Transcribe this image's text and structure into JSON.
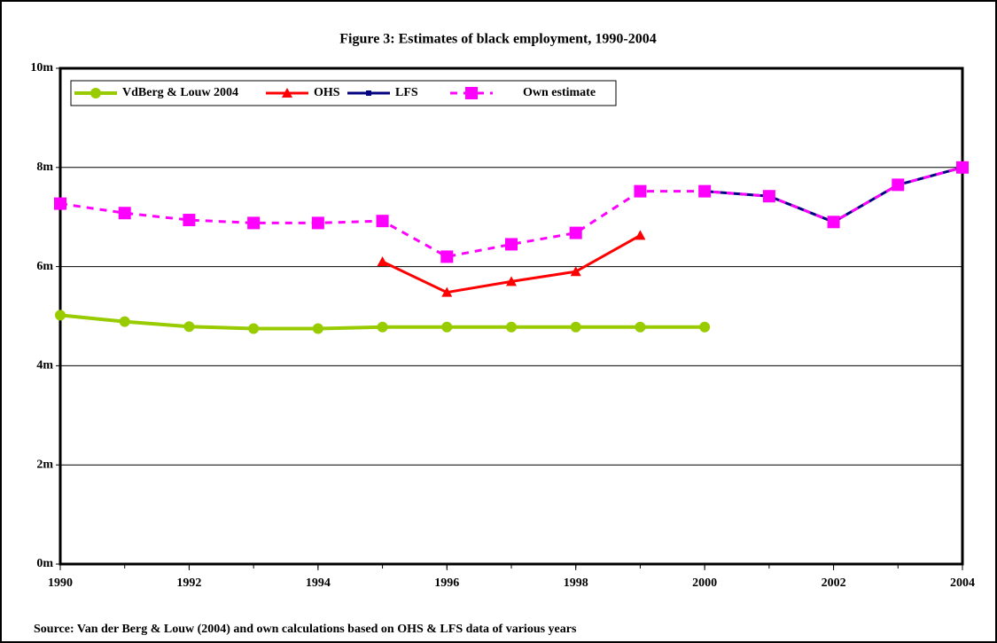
{
  "chart_data": {
    "type": "line",
    "title": "Figure 3: Estimates of black employment, 1990-2004",
    "source": "Source: Van der Berg & Louw (2004) and own calculations based on OHS & LFS data of various years",
    "x": [
      1990,
      1991,
      1992,
      1993,
      1994,
      1995,
      1996,
      1997,
      1998,
      1999,
      2000,
      2001,
      2002,
      2003,
      2004
    ],
    "xlim": [
      1990,
      2004
    ],
    "xticks": [
      1990,
      1992,
      1994,
      1996,
      1998,
      2000,
      2002,
      2004
    ],
    "ylim": [
      0,
      10
    ],
    "yticks": [
      {
        "value": 0,
        "label": "0m"
      },
      {
        "value": 2,
        "label": "2m"
      },
      {
        "value": 4,
        "label": "4m"
      },
      {
        "value": 6,
        "label": "6m"
      },
      {
        "value": 8,
        "label": "8m"
      },
      {
        "value": 10,
        "label": "10m"
      }
    ],
    "grid": true,
    "legend": "top-left",
    "series": [
      {
        "name": "VdBerg & Louw 2004",
        "color": "#99cc00",
        "marker": "circle",
        "dashed": false,
        "values": [
          5.02,
          4.89,
          4.79,
          4.75,
          4.75,
          4.78,
          4.78,
          4.78,
          4.78,
          4.78,
          4.78,
          null,
          null,
          null,
          null
        ]
      },
      {
        "name": "OHS",
        "color": "#ff0000",
        "marker": "triangle",
        "dashed": false,
        "values": [
          null,
          null,
          null,
          null,
          null,
          6.1,
          5.48,
          5.7,
          5.9,
          6.63,
          null,
          null,
          null,
          null,
          null
        ]
      },
      {
        "name": "LFS",
        "color": "#000080",
        "marker": "square-small",
        "dashed": false,
        "values": [
          null,
          null,
          null,
          null,
          null,
          null,
          null,
          null,
          null,
          null,
          7.52,
          7.42,
          6.9,
          7.65,
          8.0
        ]
      },
      {
        "name": "Own estimate",
        "color": "#ff00ff",
        "marker": "square",
        "dashed": true,
        "values": [
          7.27,
          7.08,
          6.94,
          6.88,
          6.88,
          6.92,
          6.2,
          6.45,
          6.68,
          7.52,
          7.52,
          7.42,
          6.9,
          7.65,
          8.0
        ]
      }
    ]
  }
}
